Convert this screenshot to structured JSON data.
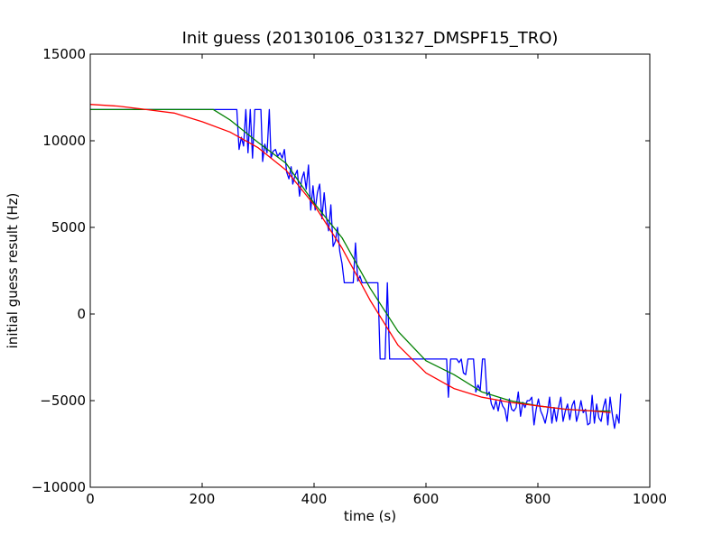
{
  "chart_data": {
    "type": "line",
    "title": "Init guess (20130106_031327_DMSPF15_TRO)",
    "xlabel": "time (s)",
    "ylabel": "initial guess result (Hz)",
    "xlim": [
      0,
      1000
    ],
    "ylim": [
      -10000,
      15000
    ],
    "xticks": [
      0,
      200,
      400,
      600,
      800,
      1000
    ],
    "yticks": [
      15000,
      10000,
      5000,
      0,
      -5000,
      -10000
    ],
    "xtick_labels": [
      "0",
      "200",
      "400",
      "600",
      "800",
      "1000"
    ],
    "ytick_labels": [
      "15000",
      "10000",
      "5000",
      "0",
      "−5000",
      "−10000"
    ],
    "grid": false,
    "legend": "none",
    "series": [
      {
        "color": "#0000ff",
        "points": [
          [
            0,
            11800
          ],
          [
            262,
            11800
          ],
          [
            266,
            9500
          ],
          [
            270,
            10200
          ],
          [
            274,
            9700
          ],
          [
            278,
            11800
          ],
          [
            282,
            9300
          ],
          [
            286,
            11800
          ],
          [
            290,
            9000
          ],
          [
            294,
            11800
          ],
          [
            305,
            11800
          ],
          [
            308,
            8800
          ],
          [
            312,
            9800
          ],
          [
            316,
            9300
          ],
          [
            320,
            11800
          ],
          [
            323,
            9000
          ],
          [
            327,
            9400
          ],
          [
            331,
            9500
          ],
          [
            335,
            9100
          ],
          [
            339,
            9300
          ],
          [
            343,
            9000
          ],
          [
            347,
            9500
          ],
          [
            351,
            8200
          ],
          [
            355,
            7800
          ],
          [
            359,
            8500
          ],
          [
            362,
            7500
          ],
          [
            366,
            8000
          ],
          [
            370,
            8300
          ],
          [
            374,
            6800
          ],
          [
            378,
            7800
          ],
          [
            382,
            8200
          ],
          [
            386,
            7200
          ],
          [
            390,
            8600
          ],
          [
            394,
            6000
          ],
          [
            398,
            7400
          ],
          [
            402,
            6000
          ],
          [
            406,
            7000
          ],
          [
            410,
            7500
          ],
          [
            414,
            5500
          ],
          [
            418,
            7000
          ],
          [
            422,
            5600
          ],
          [
            426,
            4800
          ],
          [
            430,
            6300
          ],
          [
            434,
            3900
          ],
          [
            438,
            4200
          ],
          [
            442,
            5000
          ],
          [
            446,
            3600
          ],
          [
            450,
            2900
          ],
          [
            454,
            1800
          ],
          [
            470,
            1800
          ],
          [
            474,
            4100
          ],
          [
            478,
            1900
          ],
          [
            482,
            2200
          ],
          [
            486,
            1800
          ],
          [
            514,
            1800
          ],
          [
            518,
            -2600
          ],
          [
            527,
            -2600
          ],
          [
            531,
            1800
          ],
          [
            535,
            -2600
          ],
          [
            637,
            -2600
          ],
          [
            640,
            -4800
          ],
          [
            644,
            -2600
          ],
          [
            655,
            -2600
          ],
          [
            659,
            -2800
          ],
          [
            663,
            -2600
          ],
          [
            667,
            -3400
          ],
          [
            671,
            -3500
          ],
          [
            675,
            -2600
          ],
          [
            685,
            -2600
          ],
          [
            689,
            -4500
          ],
          [
            693,
            -4100
          ],
          [
            697,
            -4400
          ],
          [
            701,
            -2600
          ],
          [
            705,
            -2600
          ],
          [
            709,
            -4700
          ],
          [
            713,
            -4500
          ],
          [
            717,
            -5200
          ],
          [
            721,
            -5500
          ],
          [
            725,
            -5000
          ],
          [
            729,
            -5600
          ],
          [
            733,
            -4900
          ],
          [
            737,
            -5300
          ],
          [
            741,
            -5500
          ],
          [
            745,
            -6200
          ],
          [
            749,
            -4900
          ],
          [
            753,
            -5500
          ],
          [
            757,
            -5600
          ],
          [
            761,
            -5400
          ],
          [
            765,
            -4500
          ],
          [
            769,
            -5900
          ],
          [
            773,
            -5100
          ],
          [
            777,
            -5400
          ],
          [
            781,
            -5000
          ],
          [
            785,
            -5000
          ],
          [
            789,
            -4800
          ],
          [
            793,
            -6400
          ],
          [
            797,
            -5500
          ],
          [
            801,
            -4900
          ],
          [
            805,
            -5600
          ],
          [
            809,
            -5900
          ],
          [
            813,
            -6300
          ],
          [
            817,
            -5700
          ],
          [
            821,
            -4800
          ],
          [
            825,
            -6300
          ],
          [
            829,
            -5400
          ],
          [
            833,
            -6200
          ],
          [
            837,
            -5400
          ],
          [
            841,
            -4800
          ],
          [
            845,
            -6200
          ],
          [
            849,
            -5600
          ],
          [
            853,
            -5200
          ],
          [
            857,
            -6100
          ],
          [
            861,
            -5300
          ],
          [
            865,
            -5000
          ],
          [
            869,
            -6200
          ],
          [
            873,
            -5700
          ],
          [
            877,
            -5000
          ],
          [
            881,
            -5700
          ],
          [
            885,
            -5500
          ],
          [
            889,
            -6400
          ],
          [
            893,
            -6300
          ],
          [
            897,
            -4700
          ],
          [
            901,
            -6300
          ],
          [
            905,
            -5200
          ],
          [
            909,
            -6000
          ],
          [
            913,
            -6200
          ],
          [
            917,
            -5400
          ],
          [
            921,
            -4900
          ],
          [
            925,
            -6400
          ],
          [
            929,
            -4800
          ],
          [
            933,
            -5800
          ],
          [
            937,
            -6600
          ],
          [
            941,
            -5800
          ],
          [
            945,
            -6300
          ],
          [
            948,
            -4600
          ]
        ]
      },
      {
        "color": "#008000",
        "points": [
          [
            0,
            11800
          ],
          [
            100,
            11800
          ],
          [
            220,
            11800
          ],
          [
            250,
            11200
          ],
          [
            300,
            9900
          ],
          [
            350,
            8700
          ],
          [
            400,
            6400
          ],
          [
            450,
            4400
          ],
          [
            500,
            1500
          ],
          [
            550,
            -1000
          ],
          [
            600,
            -2700
          ],
          [
            650,
            -3500
          ],
          [
            700,
            -4500
          ],
          [
            750,
            -5000
          ],
          [
            800,
            -5300
          ],
          [
            850,
            -5500
          ],
          [
            900,
            -5600
          ],
          [
            930,
            -5600
          ]
        ]
      },
      {
        "color": "#ff0000",
        "points": [
          [
            0,
            12100
          ],
          [
            50,
            12000
          ],
          [
            100,
            11800
          ],
          [
            150,
            11600
          ],
          [
            200,
            11100
          ],
          [
            250,
            10500
          ],
          [
            300,
            9600
          ],
          [
            350,
            8300
          ],
          [
            400,
            6300
          ],
          [
            450,
            3800
          ],
          [
            500,
            800
          ],
          [
            550,
            -1800
          ],
          [
            600,
            -3400
          ],
          [
            650,
            -4300
          ],
          [
            700,
            -4800
          ],
          [
            750,
            -5100
          ],
          [
            800,
            -5300
          ],
          [
            850,
            -5500
          ],
          [
            900,
            -5600
          ],
          [
            930,
            -5700
          ]
        ]
      }
    ]
  }
}
